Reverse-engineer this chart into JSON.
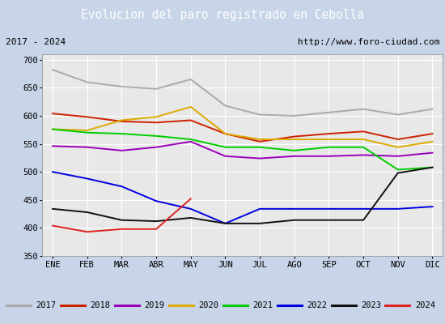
{
  "title": "Evolucion del paro registrado en Cebolla",
  "subtitle_left": "2017 - 2024",
  "subtitle_right": "http://www.foro-ciudad.com",
  "title_bg_color": "#5599dd",
  "title_text_color": "#ffffff",
  "bg_color": "#c8d4e8",
  "plot_bg_color": "#e8e8e8",
  "xlabels": [
    "ENE",
    "FEB",
    "MAR",
    "ABR",
    "MAY",
    "JUN",
    "JUL",
    "AGO",
    "SEP",
    "OCT",
    "NOV",
    "DIC"
  ],
  "ylim": [
    350,
    710
  ],
  "yticks": [
    350,
    400,
    450,
    500,
    550,
    600,
    650,
    700
  ],
  "series": {
    "2017": {
      "color": "#aaaaaa",
      "data": [
        682,
        660,
        652,
        648,
        665,
        618,
        602,
        600,
        606,
        612,
        602,
        612
      ]
    },
    "2018": {
      "color": "#cc2200",
      "data": [
        604,
        598,
        590,
        588,
        592,
        568,
        554,
        563,
        568,
        572,
        558,
        568
      ]
    },
    "2019": {
      "color": "#9900bb",
      "data": [
        546,
        544,
        538,
        544,
        554,
        528,
        524,
        528,
        528,
        530,
        528,
        534
      ]
    },
    "2020": {
      "color": "#ddaa00",
      "data": [
        576,
        574,
        592,
        598,
        616,
        568,
        558,
        558,
        558,
        558,
        544,
        554
      ]
    },
    "2021": {
      "color": "#00cc00",
      "data": [
        576,
        570,
        568,
        564,
        558,
        544,
        544,
        538,
        544,
        544,
        504,
        508
      ]
    },
    "2022": {
      "color": "#0000dd",
      "data": [
        500,
        488,
        474,
        448,
        434,
        408,
        434,
        434,
        434,
        434,
        434,
        438
      ]
    },
    "2023": {
      "color": "#111111",
      "data": [
        434,
        428,
        414,
        412,
        418,
        408,
        408,
        414,
        414,
        414,
        498,
        508
      ]
    },
    "2024": {
      "color": "#dd2222",
      "data": [
        404,
        393,
        398,
        398,
        452,
        null,
        null,
        null,
        null,
        null,
        null,
        null
      ]
    }
  }
}
